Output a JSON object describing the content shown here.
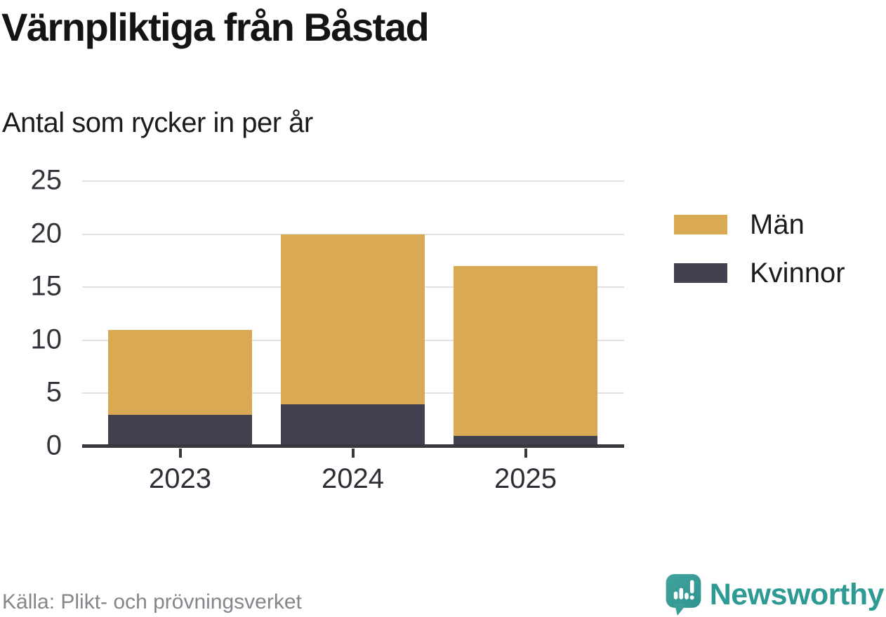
{
  "chart_data": {
    "type": "bar",
    "stacked": true,
    "title": "Värnpliktiga från Båstad",
    "subtitle": "Antal som rycker in per år",
    "categories": [
      "2023",
      "2024",
      "2025"
    ],
    "series": [
      {
        "name": "Män",
        "color": "#d9a953",
        "values": [
          8,
          16,
          16
        ]
      },
      {
        "name": "Kvinnor",
        "color": "#424150",
        "values": [
          3,
          4,
          1
        ]
      }
    ],
    "totals": [
      11,
      20,
      17
    ],
    "ylim": [
      0,
      25
    ],
    "yticks": [
      0,
      5,
      10,
      15,
      20,
      25
    ],
    "grid": true,
    "legend_position": "right",
    "xlabel": "",
    "ylabel": ""
  },
  "colors": {
    "men": "#d9a953",
    "women": "#424150",
    "grid": "#e2e2e2",
    "axis": "#38383f",
    "brand_teal": "#2d9a93",
    "logo_teal": "#3b9e99",
    "source_gray": "#85858b"
  },
  "footer": {
    "source": "Källa: Plikt- och prövningsverket",
    "brand": "Newsworthy"
  }
}
